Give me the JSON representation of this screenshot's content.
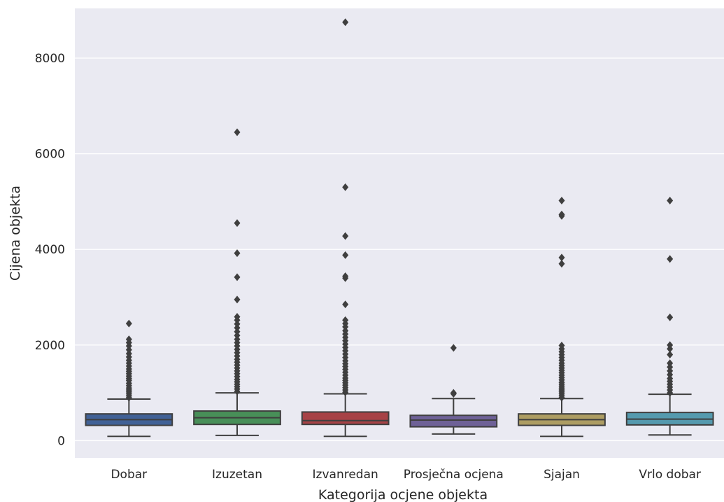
{
  "chart_data": {
    "type": "box",
    "title": "",
    "xlabel": "Kategorija ocjene objekta",
    "ylabel": "Cijena objekta",
    "ylim": [
      -360,
      9040
    ],
    "yticks": [
      0,
      2000,
      4000,
      6000,
      8000
    ],
    "grid": true,
    "legend": "none",
    "background": "#EAEAF2",
    "categories": [
      "Dobar",
      "Izuzetan",
      "Izvanredan",
      "Prosječna ocjena",
      "Sjajan",
      "Vrlo dobar"
    ],
    "series": [
      {
        "category": "Dobar",
        "color": "#4C72B0",
        "whisker_low": 90,
        "q1": 320,
        "median": 440,
        "q3": 560,
        "whisker_high": 870,
        "outliers": [
          900,
          940,
          980,
          1020,
          1060,
          1100,
          1150,
          1200,
          1260,
          1300,
          1350,
          1400,
          1450,
          1500,
          1560,
          1620,
          1680,
          1750,
          1820,
          1900,
          1980,
          2050,
          2120,
          2450
        ]
      },
      {
        "category": "Izuzetan",
        "color": "#55A868",
        "whisker_low": 110,
        "q1": 340,
        "median": 480,
        "q3": 620,
        "whisker_high": 1000,
        "outliers": [
          1030,
          1080,
          1130,
          1180,
          1230,
          1280,
          1340,
          1400,
          1460,
          1520,
          1580,
          1640,
          1700,
          1770,
          1840,
          1910,
          1980,
          2050,
          2120,
          2200,
          2280,
          2360,
          2440,
          2520,
          2590,
          2950,
          3420,
          3920,
          4550,
          6450
        ]
      },
      {
        "category": "Izvanredan",
        "color": "#C44E52",
        "whisker_low": 90,
        "q1": 340,
        "median": 420,
        "q3": 600,
        "whisker_high": 980,
        "outliers": [
          1010,
          1060,
          1110,
          1160,
          1210,
          1260,
          1310,
          1370,
          1430,
          1490,
          1550,
          1610,
          1670,
          1740,
          1810,
          1880,
          1950,
          2020,
          2090,
          2160,
          2230,
          2300,
          2380,
          2450,
          2520,
          2850,
          3400,
          3440,
          3880,
          4280,
          5300,
          8750
        ]
      },
      {
        "category": "Prosječna ocjena",
        "color": "#8172B2",
        "whisker_low": 140,
        "q1": 290,
        "median": 430,
        "q3": 530,
        "whisker_high": 880,
        "outliers": [
          980,
          1000,
          1940
        ]
      },
      {
        "category": "Sjajan",
        "color": "#CCB974",
        "whisker_low": 90,
        "q1": 320,
        "median": 440,
        "q3": 560,
        "whisker_high": 880,
        "outliers": [
          900,
          940,
          980,
          1020,
          1060,
          1100,
          1140,
          1180,
          1220,
          1270,
          1320,
          1370,
          1420,
          1470,
          1520,
          1570,
          1620,
          1680,
          1740,
          1800,
          1860,
          1920,
          1990,
          3700,
          3830,
          4700,
          4730,
          5020
        ]
      },
      {
        "category": "Vrlo dobar",
        "color": "#64B5CD",
        "whisker_low": 120,
        "q1": 330,
        "median": 450,
        "q3": 590,
        "whisker_high": 970,
        "outliers": [
          1000,
          1060,
          1120,
          1180,
          1240,
          1300,
          1380,
          1460,
          1540,
          1620,
          1800,
          1920,
          2000,
          2580,
          3800,
          5020
        ]
      }
    ]
  }
}
